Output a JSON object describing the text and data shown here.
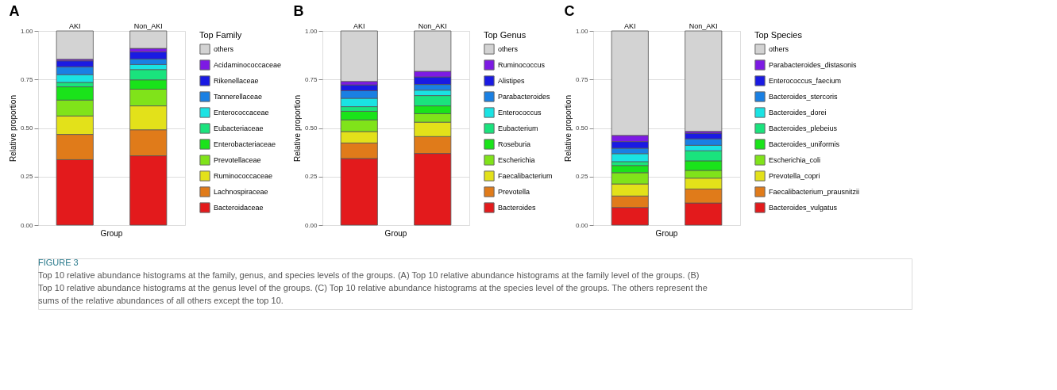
{
  "chart_data": [
    {
      "type": "bar",
      "title": "A",
      "xlabel": "Group",
      "ylabel": "Relative proportion",
      "legend_title": "Top Family",
      "categories": [
        "AKI",
        "Non_AKI"
      ],
      "stacked": true,
      "grid": true,
      "legend": "right",
      "tick_labels": "y",
      "ylim": [
        0,
        1
      ],
      "yticks": [
        {
          "value": 0,
          "label": "0.00"
        },
        {
          "value": 0.25,
          "label": "0.25"
        },
        {
          "value": 0.5,
          "label": "0.50"
        },
        {
          "value": 0.75,
          "label": "0.75"
        },
        {
          "value": 1,
          "label": "1.00"
        }
      ],
      "series": [
        {
          "name": "Bacteroidaceae",
          "color": "#e31a1c",
          "values": [
            0.337,
            0.357
          ]
        },
        {
          "name": "Lachnospiraceae",
          "color": "#e07b1a",
          "values": [
            0.13,
            0.134
          ]
        },
        {
          "name": "Ruminococcaceae",
          "color": "#e3e11a",
          "values": [
            0.095,
            0.123
          ]
        },
        {
          "name": "Prevotellaceae",
          "color": "#80e31a",
          "values": [
            0.082,
            0.086
          ]
        },
        {
          "name": "Enterobacteriaceae",
          "color": "#1ae31a",
          "values": [
            0.068,
            0.048
          ]
        },
        {
          "name": "Eubacteriaceae",
          "color": "#1ae37d",
          "values": [
            0.023,
            0.053
          ]
        },
        {
          "name": "Enterococcaceae",
          "color": "#1ae3e3",
          "values": [
            0.04,
            0.026
          ]
        },
        {
          "name": "Tannerellaceae",
          "color": "#1a80e3",
          "values": [
            0.04,
            0.028
          ]
        },
        {
          "name": "Rikenellaceae",
          "color": "#1a1ae3",
          "values": [
            0.031,
            0.037
          ]
        },
        {
          "name": "Acidaminococcaceae",
          "color": "#7d1ae3",
          "values": [
            0.008,
            0.018
          ]
        },
        {
          "name": "others",
          "color": "#d3d3d3",
          "values": [
            0.146,
            0.09
          ]
        }
      ],
      "annotations": [
        "FIGURE 3",
        "Top 10 relative abundance histograms at the family, genus, and species levels of the groups. (A) Top 10 relative abundance histograms at the family level of the groups. (B) Top 10 relative abundance histograms at the genus level of the groups. (C) Top 10 relative abundance histograms at the species level of the groups. The others represent the sums of the relative abundances of all others except the top 10."
      ]
    },
    {
      "type": "bar",
      "title": "B",
      "xlabel": "Group",
      "ylabel": "Relative proportion",
      "legend_title": "Top Genus",
      "categories": [
        "AKI",
        "Non_AKI"
      ],
      "stacked": true,
      "grid": true,
      "legend": "right",
      "tick_labels": "y",
      "ylim": [
        0,
        1
      ],
      "yticks": [
        {
          "value": 0,
          "label": "0.00"
        },
        {
          "value": 0.25,
          "label": "0.25"
        },
        {
          "value": 0.5,
          "label": "0.50"
        },
        {
          "value": 0.75,
          "label": "0.75"
        },
        {
          "value": 1,
          "label": "1.00"
        }
      ],
      "series": [
        {
          "name": "Bacteroides",
          "color": "#e31a1c",
          "values": [
            0.343,
            0.369
          ]
        },
        {
          "name": "Prevotella",
          "color": "#e07b1a",
          "values": [
            0.08,
            0.087
          ]
        },
        {
          "name": "Faecalibacterium",
          "color": "#e3e11a",
          "values": [
            0.059,
            0.074
          ]
        },
        {
          "name": "Escherichia",
          "color": "#80e31a",
          "values": [
            0.06,
            0.044
          ]
        },
        {
          "name": "Roseburia",
          "color": "#1ae31a",
          "values": [
            0.044,
            0.04
          ]
        },
        {
          "name": "Eubacterium",
          "color": "#1ae37d",
          "values": [
            0.024,
            0.053
          ]
        },
        {
          "name": "Enterococcus",
          "color": "#1ae3e3",
          "values": [
            0.043,
            0.028
          ]
        },
        {
          "name": "Parabacteroides",
          "color": "#1a80e3",
          "values": [
            0.039,
            0.029
          ]
        },
        {
          "name": "Alistipes",
          "color": "#1a1ae3",
          "values": [
            0.03,
            0.039
          ]
        },
        {
          "name": "Ruminococcus",
          "color": "#7d1ae3",
          "values": [
            0.018,
            0.029
          ]
        },
        {
          "name": "others",
          "color": "#d3d3d3",
          "values": [
            0.26,
            0.208
          ]
        }
      ]
    },
    {
      "type": "bar",
      "title": "C",
      "xlabel": "Group",
      "ylabel": "Relative proportion",
      "legend_title": "Top Species",
      "categories": [
        "AKI",
        "Non_AKI"
      ],
      "stacked": true,
      "grid": true,
      "legend": "right",
      "tick_labels": "y",
      "ylim": [
        0,
        1
      ],
      "yticks": [
        {
          "value": 0,
          "label": "0.00"
        },
        {
          "value": 0.25,
          "label": "0.25"
        },
        {
          "value": 0.5,
          "label": "0.50"
        },
        {
          "value": 0.75,
          "label": "0.75"
        },
        {
          "value": 1,
          "label": "1.00"
        }
      ],
      "series": [
        {
          "name": "Bacteroides_vulgatus",
          "color": "#e31a1c",
          "values": [
            0.091,
            0.114
          ]
        },
        {
          "name": "Faecalibacterium_prausnitzii",
          "color": "#e07b1a",
          "values": [
            0.059,
            0.072
          ]
        },
        {
          "name": "Prevotella_copri",
          "color": "#e3e11a",
          "values": [
            0.062,
            0.056
          ]
        },
        {
          "name": "Escherichia_coli",
          "color": "#80e31a",
          "values": [
            0.058,
            0.04
          ]
        },
        {
          "name": "Bacteroides_uniformis",
          "color": "#1ae31a",
          "values": [
            0.037,
            0.049
          ]
        },
        {
          "name": "Bacteroides_plebeius",
          "color": "#1ae37d",
          "values": [
            0.02,
            0.052
          ]
        },
        {
          "name": "Bacteroides_dorei",
          "color": "#1ae3e3",
          "values": [
            0.041,
            0.028
          ]
        },
        {
          "name": "Bacteroides_stercoris",
          "color": "#1a80e3",
          "values": [
            0.028,
            0.033
          ]
        },
        {
          "name": "Enterococcus_faecium",
          "color": "#1a1ae3",
          "values": [
            0.034,
            0.029
          ]
        },
        {
          "name": "Parabacteroides_distasonis",
          "color": "#7d1ae3",
          "values": [
            0.032,
            0.01
          ]
        },
        {
          "name": "others",
          "color": "#d3d3d3",
          "values": [
            0.538,
            0.517
          ]
        }
      ]
    }
  ]
}
